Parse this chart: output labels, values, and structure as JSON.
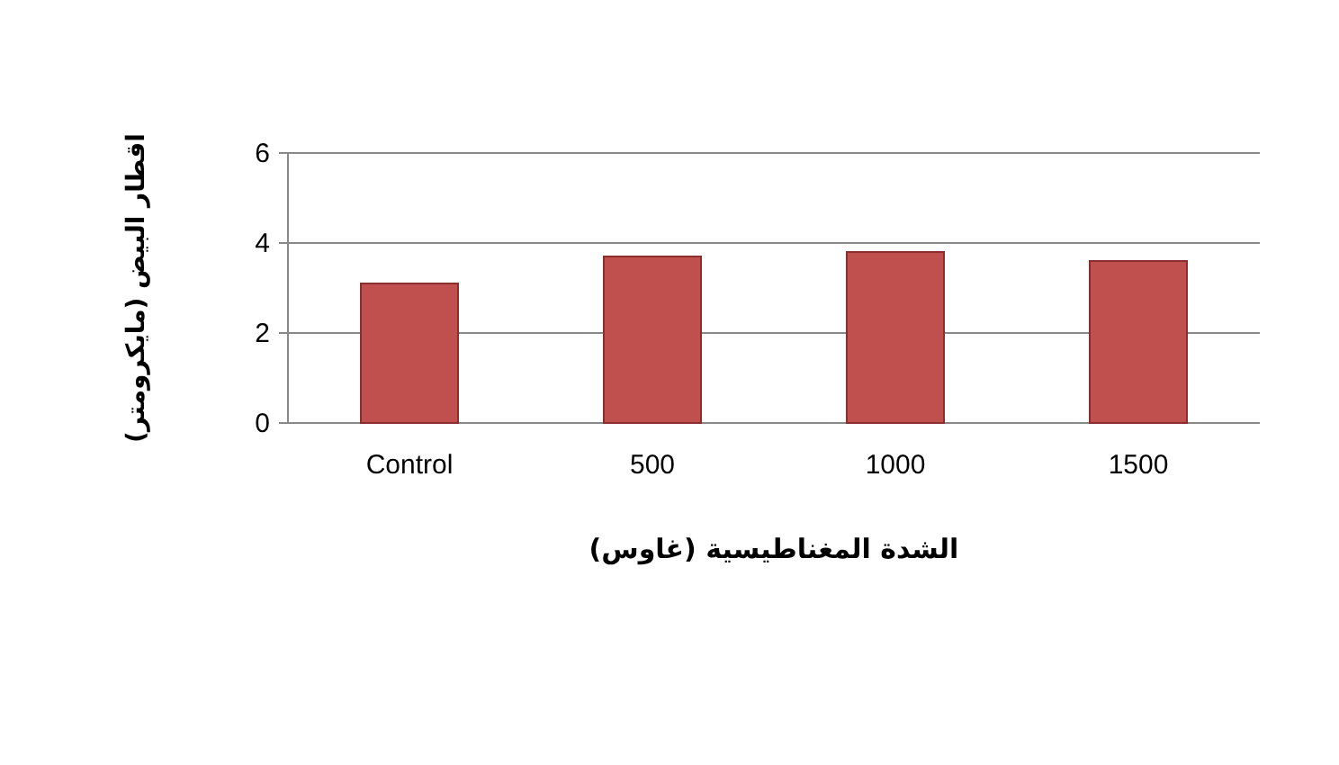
{
  "chart_data": {
    "type": "bar",
    "xlabel": "الشدة المغناطيسية (غاوس)",
    "ylabel": "اقطار البيض (مايكرومتر)",
    "categories": [
      "Control",
      "500",
      "1000",
      "1500"
    ],
    "values": [
      3.1,
      3.7,
      3.8,
      3.6
    ],
    "color": "#c0504d",
    "ylim": [
      0,
      6
    ],
    "yticks": [
      0,
      2,
      4,
      6
    ],
    "grid": "y"
  }
}
